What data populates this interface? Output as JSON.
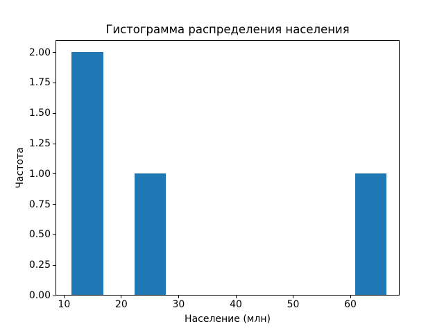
{
  "chart_data": {
    "type": "bar",
    "subtype": "histogram",
    "title": "Гистограмма распределения населения",
    "xlabel": "Население (млн)",
    "ylabel": "Частота",
    "xlim": [
      8.5,
      68.6
    ],
    "ylim": [
      0,
      2.1
    ],
    "grid": false,
    "legend": null,
    "bar_color": "#1f77b4",
    "axis_color": "#000000",
    "background_color": "#ffffff",
    "bars": [
      {
        "x0": 11.2,
        "x1": 16.7,
        "count": 2
      },
      {
        "x0": 22.2,
        "x1": 27.7,
        "count": 1
      },
      {
        "x0": 60.7,
        "x1": 66.2,
        "count": 1
      }
    ],
    "xticks": [
      {
        "value": 10,
        "label": "10"
      },
      {
        "value": 20,
        "label": "20"
      },
      {
        "value": 30,
        "label": "30"
      },
      {
        "value": 40,
        "label": "40"
      },
      {
        "value": 50,
        "label": "50"
      },
      {
        "value": 60,
        "label": "60"
      }
    ],
    "yticks": [
      {
        "value": 0.0,
        "label": "0.00"
      },
      {
        "value": 0.25,
        "label": "0.25"
      },
      {
        "value": 0.5,
        "label": "0.50"
      },
      {
        "value": 0.75,
        "label": "0.75"
      },
      {
        "value": 1.0,
        "label": "1.00"
      },
      {
        "value": 1.25,
        "label": "1.25"
      },
      {
        "value": 1.5,
        "label": "1.50"
      },
      {
        "value": 1.75,
        "label": "1.75"
      },
      {
        "value": 2.0,
        "label": "2.00"
      }
    ]
  }
}
